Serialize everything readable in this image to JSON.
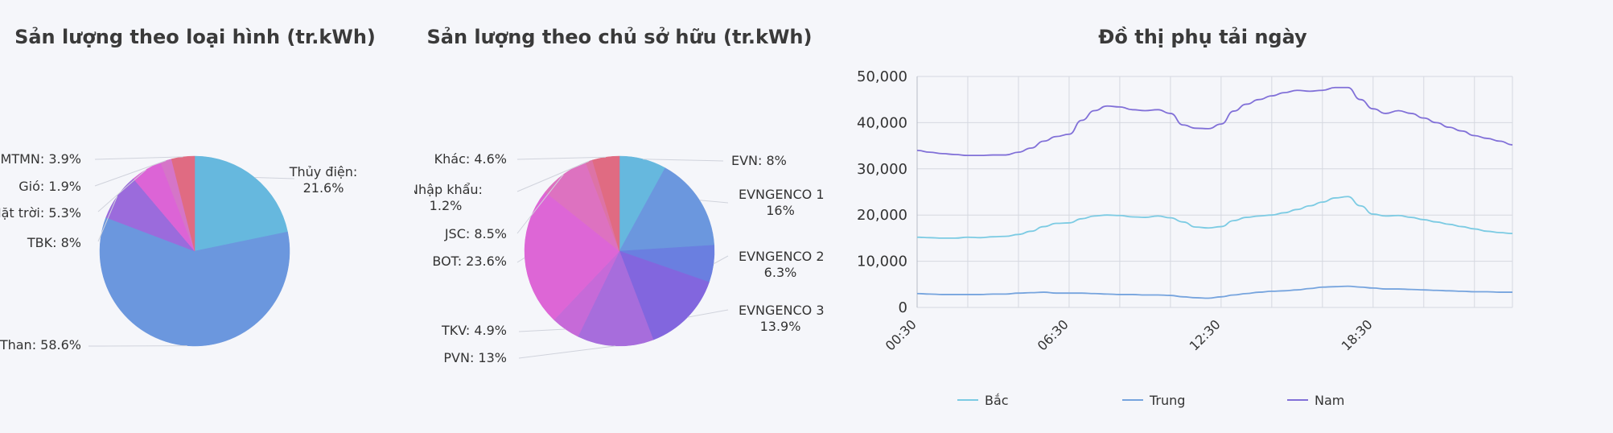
{
  "chart_data": [
    {
      "type": "pie",
      "title": "Sản lượng theo loại hình (tr.kWh)",
      "slices": [
        {
          "label": "Thủy điện:",
          "value": 21.6,
          "color": "#66b8de"
        },
        {
          "label": "NĐ Than:",
          "value": 58.6,
          "color": "#6b97de"
        },
        {
          "label": "TBK:",
          "value": 8,
          "color": "#9b6bdc"
        },
        {
          "label": "Mặt trời:",
          "value": 5.3,
          "color": "#dc64d6"
        },
        {
          "label": "Gió:",
          "value": 1.9,
          "color": "#d575c8"
        },
        {
          "label": "MTMN:",
          "value": 3.9,
          "color": "#e06b82"
        }
      ],
      "value_texts": [
        "21.6%",
        "58.6%",
        "8%",
        "5.3%",
        "1.9%",
        "3.9%"
      ]
    },
    {
      "type": "pie",
      "title": "Sản lượng theo chủ sở hữu (tr.kWh)",
      "slices": [
        {
          "label": "EVN:",
          "value": 8,
          "color": "#66b8de"
        },
        {
          "label": "EVNGENCO 1",
          "value": 16,
          "color": "#6b97de"
        },
        {
          "label": "EVNGENCO 2",
          "value": 6.3,
          "color": "#6a7fe0"
        },
        {
          "label": "EVNGENCO 3",
          "value": 13.9,
          "color": "#8266de"
        },
        {
          "label": "PVN:",
          "value": 13,
          "color": "#a76ddc"
        },
        {
          "label": "TKV:",
          "value": 4.9,
          "color": "#c66ad8"
        },
        {
          "label": "BOT:",
          "value": 23.6,
          "color": "#dd66d6"
        },
        {
          "label": "JSC:",
          "value": 8.5,
          "color": "#dd72c0"
        },
        {
          "label": "Nhập khẩu:",
          "value": 1.2,
          "color": "#dd73a6"
        },
        {
          "label": "Khác:",
          "value": 4.6,
          "color": "#e06b82"
        }
      ],
      "value_texts": [
        "8%",
        "16%",
        "6.3%",
        "13.9%",
        "13%",
        "4.9%",
        "23.6%",
        "8.5%",
        "1.2%",
        "4.6%"
      ]
    },
    {
      "type": "line",
      "title": "Đồ thị phụ tải ngày",
      "x_ticks": [
        "00:30",
        "06:30",
        "12:30",
        "18:30"
      ],
      "y_ticks": [
        "50,000",
        "40,000",
        "30,000",
        "20,000",
        "10,000",
        "0"
      ],
      "ylim": [
        0,
        50000
      ],
      "x_count": 48,
      "series": [
        {
          "name": "Bắc",
          "color": "#7ccbe3",
          "values": [
            15200,
            15100,
            15000,
            15000,
            15200,
            15100,
            15300,
            15400,
            15800,
            16500,
            17500,
            18200,
            18300,
            19200,
            19800,
            20000,
            19900,
            19600,
            19500,
            19800,
            19400,
            18500,
            17400,
            17200,
            17500,
            18800,
            19500,
            19800,
            20000,
            20500,
            21200,
            22000,
            22800,
            23700,
            24000,
            22000,
            20200,
            19800,
            19900,
            19500,
            19000,
            18500,
            18000,
            17500,
            17000,
            16500,
            16200,
            16000
          ]
        },
        {
          "name": "Trung",
          "color": "#76a4de",
          "values": [
            3000,
            2900,
            2800,
            2800,
            2800,
            2800,
            2900,
            2900,
            3100,
            3200,
            3300,
            3100,
            3100,
            3100,
            3000,
            2900,
            2800,
            2800,
            2700,
            2700,
            2600,
            2300,
            2100,
            2000,
            2300,
            2700,
            3000,
            3300,
            3500,
            3600,
            3800,
            4100,
            4400,
            4500,
            4600,
            4400,
            4200,
            4000,
            4000,
            3900,
            3800,
            3700,
            3600,
            3500,
            3400,
            3400,
            3300,
            3300
          ]
        },
        {
          "name": "Nam",
          "color": "#8170d8",
          "values": [
            34000,
            33600,
            33300,
            33100,
            32900,
            32900,
            33000,
            33000,
            33600,
            34500,
            36000,
            37000,
            37500,
            40500,
            42600,
            43600,
            43400,
            42800,
            42600,
            42800,
            42000,
            39500,
            38800,
            38700,
            39700,
            42500,
            44000,
            45000,
            45800,
            46500,
            47000,
            46800,
            47000,
            47600,
            47600,
            45000,
            43000,
            42000,
            42600,
            42000,
            41000,
            40000,
            39000,
            38200,
            37200,
            36600,
            36000,
            35200
          ]
        }
      ]
    }
  ]
}
